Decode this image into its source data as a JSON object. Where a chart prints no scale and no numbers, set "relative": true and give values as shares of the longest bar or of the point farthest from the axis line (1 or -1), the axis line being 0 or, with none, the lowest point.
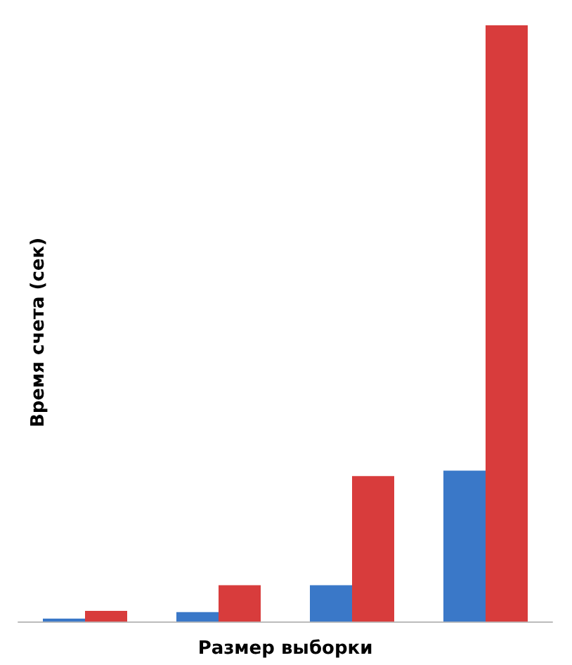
{
  "chart_data": {
    "type": "bar",
    "relative": true,
    "xlabel": "Размер выборки",
    "ylabel": "Время счета (сек)",
    "categories": [
      null,
      null,
      null,
      null
    ],
    "series": [
      {
        "color": "#3a78c8",
        "values": [
          0.005,
          0.016,
          0.061,
          0.253
        ]
      },
      {
        "color": "#d83c3c",
        "values": [
          0.018,
          0.061,
          0.244,
          1
        ]
      }
    ]
  }
}
